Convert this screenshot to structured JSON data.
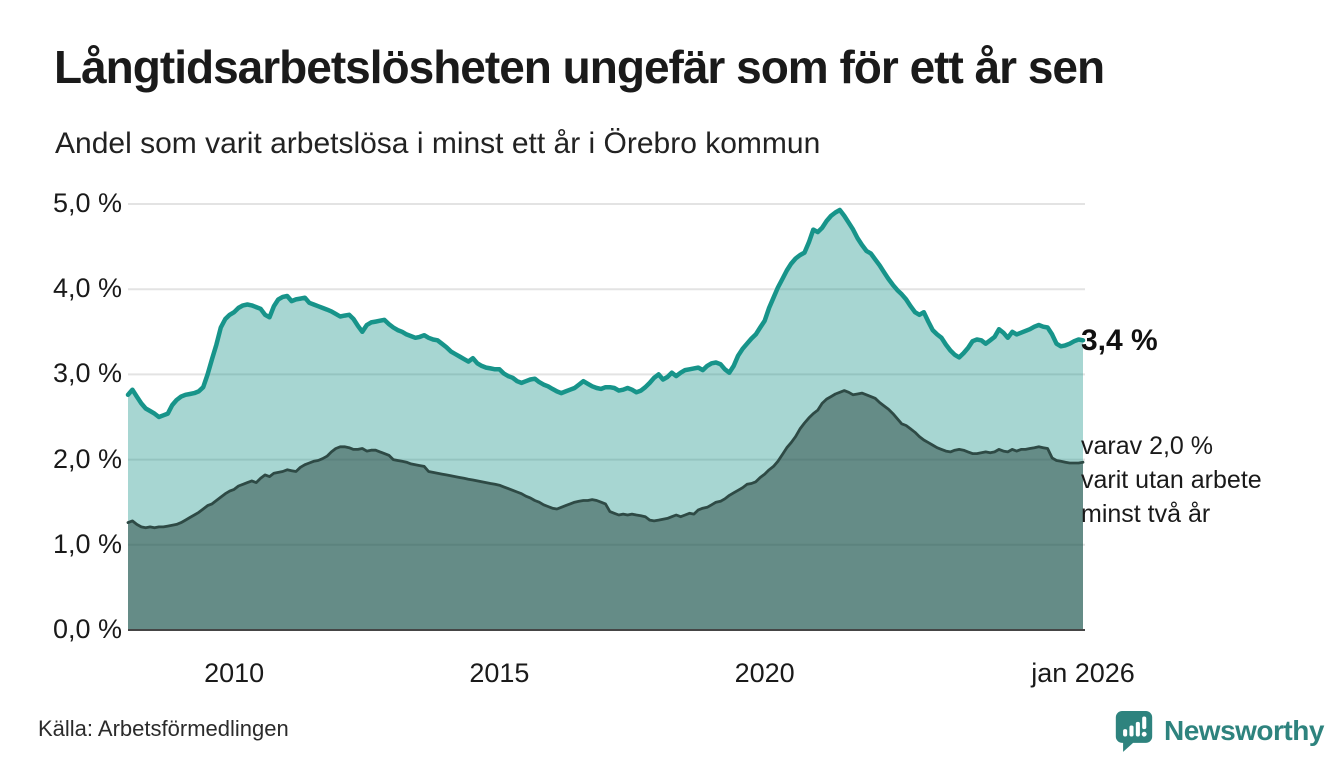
{
  "header": {
    "title": "Långtidsarbetslösheten ungefär som för ett år sen",
    "subtitle": "Andel som varit arbetslösa i minst ett år i Örebro kommun"
  },
  "chart_data": {
    "type": "area",
    "x_start": "jan 2008",
    "x_end": "jan 2026",
    "interval": "monthly",
    "ylim": [
      0,
      5
    ],
    "grid": true,
    "y_ticks": [
      {
        "label": "5,0 %",
        "value": 5
      },
      {
        "label": "4,0 %",
        "value": 4
      },
      {
        "label": "3,0 %",
        "value": 3
      },
      {
        "label": "2,0 %",
        "value": 2
      },
      {
        "label": "1,0 %",
        "value": 1
      },
      {
        "label": "0,0 %",
        "value": 0
      }
    ],
    "x_ticks": [
      {
        "label": "2010",
        "index": 24
      },
      {
        "label": "2015",
        "index": 84
      },
      {
        "label": "2020",
        "index": 144
      },
      {
        "label": "jan 2026",
        "index": 216
      }
    ],
    "colors": {
      "gridline": "#e3e3e3",
      "baseline": "#454545",
      "series1_line": "#17948a",
      "series1_fill": "rgba(23,148,138,0.38)",
      "series2_line": "#2e4a45",
      "series2_fill": "rgba(35,65,60,0.5)"
    },
    "series": [
      {
        "name": "Arbetslösa minst ett år",
        "end_value": "3,4 %",
        "values": [
          2.76,
          2.82,
          2.74,
          2.66,
          2.6,
          2.57,
          2.54,
          2.5,
          2.52,
          2.54,
          2.64,
          2.7,
          2.74,
          2.76,
          2.77,
          2.78,
          2.8,
          2.85,
          3.0,
          3.18,
          3.35,
          3.55,
          3.65,
          3.7,
          3.73,
          3.78,
          3.81,
          3.82,
          3.81,
          3.79,
          3.77,
          3.7,
          3.67,
          3.8,
          3.88,
          3.91,
          3.92,
          3.86,
          3.88,
          3.89,
          3.9,
          3.84,
          3.82,
          3.8,
          3.78,
          3.76,
          3.74,
          3.71,
          3.68,
          3.69,
          3.7,
          3.65,
          3.57,
          3.5,
          3.58,
          3.61,
          3.62,
          3.63,
          3.64,
          3.59,
          3.55,
          3.52,
          3.5,
          3.47,
          3.45,
          3.43,
          3.44,
          3.46,
          3.43,
          3.41,
          3.4,
          3.36,
          3.32,
          3.27,
          3.24,
          3.21,
          3.18,
          3.15,
          3.19,
          3.13,
          3.1,
          3.08,
          3.07,
          3.06,
          3.06,
          3.01,
          2.98,
          2.96,
          2.92,
          2.9,
          2.92,
          2.94,
          2.95,
          2.91,
          2.88,
          2.86,
          2.83,
          2.8,
          2.78,
          2.8,
          2.82,
          2.84,
          2.88,
          2.92,
          2.89,
          2.86,
          2.84,
          2.83,
          2.85,
          2.85,
          2.84,
          2.81,
          2.82,
          2.84,
          2.82,
          2.79,
          2.81,
          2.85,
          2.9,
          2.96,
          3.0,
          2.94,
          2.97,
          3.02,
          2.98,
          3.02,
          3.05,
          3.06,
          3.07,
          3.08,
          3.05,
          3.1,
          3.13,
          3.14,
          3.12,
          3.06,
          3.02,
          3.1,
          3.22,
          3.3,
          3.36,
          3.42,
          3.47,
          3.55,
          3.63,
          3.78,
          3.9,
          4.02,
          4.12,
          4.22,
          4.3,
          4.36,
          4.4,
          4.43,
          4.55,
          4.7,
          4.67,
          4.72,
          4.8,
          4.86,
          4.9,
          4.93,
          4.86,
          4.78,
          4.7,
          4.6,
          4.52,
          4.45,
          4.42,
          4.35,
          4.28,
          4.2,
          4.12,
          4.05,
          3.99,
          3.94,
          3.88,
          3.8,
          3.73,
          3.7,
          3.73,
          3.62,
          3.52,
          3.47,
          3.43,
          3.35,
          3.28,
          3.23,
          3.2,
          3.25,
          3.31,
          3.39,
          3.41,
          3.4,
          3.36,
          3.4,
          3.44,
          3.53,
          3.49,
          3.43,
          3.5,
          3.47,
          3.49,
          3.51,
          3.53,
          3.56,
          3.58,
          3.56,
          3.55,
          3.47,
          3.36,
          3.33,
          3.34,
          3.36,
          3.39,
          3.41,
          3.4
        ]
      },
      {
        "name": "Arbetslösa minst två år",
        "end_value": "2,0 %",
        "values": [
          1.26,
          1.28,
          1.24,
          1.21,
          1.2,
          1.21,
          1.2,
          1.21,
          1.21,
          1.22,
          1.23,
          1.24,
          1.26,
          1.29,
          1.32,
          1.35,
          1.38,
          1.42,
          1.46,
          1.48,
          1.52,
          1.56,
          1.6,
          1.63,
          1.65,
          1.69,
          1.71,
          1.73,
          1.75,
          1.73,
          1.78,
          1.82,
          1.8,
          1.84,
          1.85,
          1.86,
          1.88,
          1.87,
          1.86,
          1.91,
          1.94,
          1.96,
          1.98,
          1.99,
          2.01,
          2.04,
          2.09,
          2.13,
          2.15,
          2.15,
          2.14,
          2.12,
          2.12,
          2.13,
          2.1,
          2.11,
          2.11,
          2.09,
          2.07,
          2.05,
          2.0,
          1.99,
          1.98,
          1.97,
          1.95,
          1.94,
          1.93,
          1.92,
          1.86,
          1.85,
          1.84,
          1.83,
          1.82,
          1.81,
          1.8,
          1.79,
          1.78,
          1.77,
          1.76,
          1.75,
          1.74,
          1.73,
          1.72,
          1.71,
          1.7,
          1.68,
          1.66,
          1.64,
          1.62,
          1.6,
          1.57,
          1.55,
          1.52,
          1.5,
          1.47,
          1.45,
          1.43,
          1.42,
          1.44,
          1.46,
          1.48,
          1.5,
          1.51,
          1.52,
          1.52,
          1.53,
          1.52,
          1.5,
          1.48,
          1.39,
          1.37,
          1.35,
          1.36,
          1.35,
          1.36,
          1.35,
          1.34,
          1.33,
          1.29,
          1.28,
          1.29,
          1.3,
          1.31,
          1.33,
          1.35,
          1.33,
          1.35,
          1.37,
          1.36,
          1.41,
          1.43,
          1.44,
          1.47,
          1.5,
          1.51,
          1.54,
          1.58,
          1.61,
          1.64,
          1.67,
          1.71,
          1.72,
          1.74,
          1.79,
          1.83,
          1.88,
          1.92,
          1.98,
          2.06,
          2.14,
          2.2,
          2.27,
          2.36,
          2.43,
          2.49,
          2.54,
          2.58,
          2.66,
          2.71,
          2.74,
          2.77,
          2.79,
          2.81,
          2.79,
          2.76,
          2.77,
          2.78,
          2.76,
          2.74,
          2.72,
          2.67,
          2.63,
          2.59,
          2.54,
          2.48,
          2.42,
          2.4,
          2.36,
          2.32,
          2.27,
          2.23,
          2.2,
          2.17,
          2.14,
          2.12,
          2.1,
          2.09,
          2.11,
          2.12,
          2.11,
          2.09,
          2.07,
          2.07,
          2.08,
          2.09,
          2.08,
          2.09,
          2.12,
          2.1,
          2.09,
          2.12,
          2.1,
          2.12,
          2.12,
          2.13,
          2.14,
          2.15,
          2.14,
          2.13,
          2.02,
          1.99,
          1.98,
          1.97,
          1.96,
          1.96,
          1.96,
          1.97
        ]
      }
    ]
  },
  "annotations": {
    "value_label": "3,4 %",
    "secondary_lines": [
      "varav 2,0 %",
      "varit utan arbete",
      "minst två år"
    ]
  },
  "footer": {
    "source": "Källa: Arbetsförmedlingen",
    "brand": "Newsworthy",
    "brand_color": "#2e837e"
  }
}
